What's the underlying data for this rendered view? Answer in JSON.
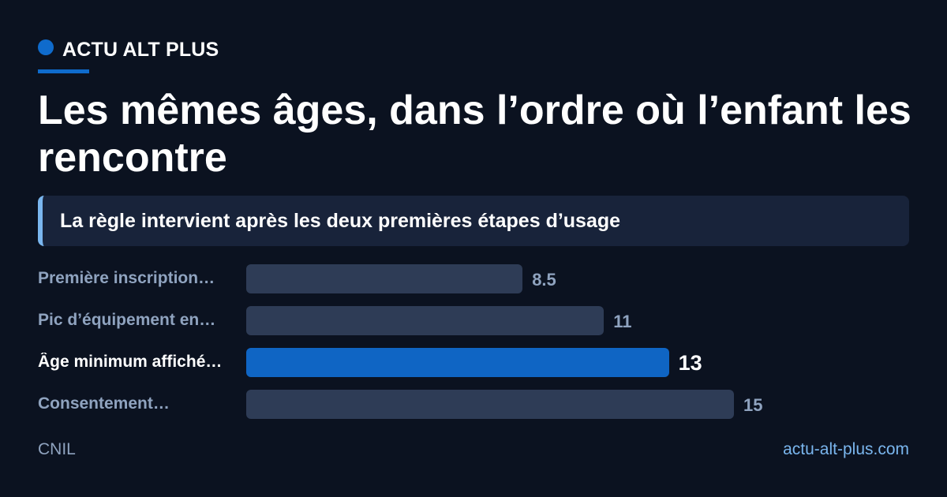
{
  "brand": {
    "name": "ACTU ALT PLUS",
    "accent_color": "#0f6bcc"
  },
  "title": "Les mêmes âges, dans l’ordre où l’enfant les rencontre",
  "callout": "La règle intervient après les deux premières étapes d’usage",
  "chart_data": {
    "type": "bar",
    "orientation": "horizontal",
    "categories": [
      "Première inscription…",
      "Pic d’équipement en…",
      "Âge minimum affiché…",
      "Consentement…"
    ],
    "values": [
      8.5,
      11,
      13,
      15
    ],
    "value_labels": [
      "8.5",
      "11",
      "13",
      "15"
    ],
    "highlight_index": 2,
    "xlim": [
      0,
      17.6
    ],
    "bar_color": "#2e3c56",
    "highlight_color": "#0f65c4",
    "grid": false
  },
  "footer": {
    "source": "CNIL",
    "site": "actu-alt-plus.com"
  }
}
